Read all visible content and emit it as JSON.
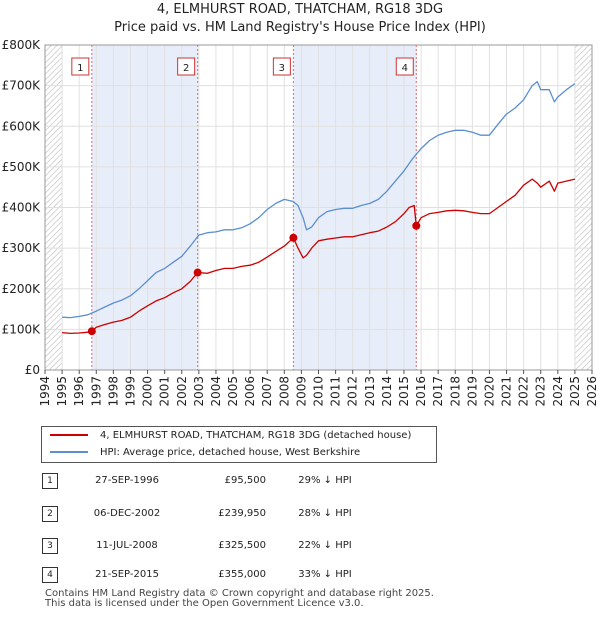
{
  "chart_data": {
    "type": "line",
    "title": "4, ELMHURST ROAD, THATCHAM, RG18 3DG",
    "subtitle": "Price paid vs. HM Land Registry's House Price Index (HPI)",
    "y_ticks": [
      "£0",
      "£100K",
      "£200K",
      "£300K",
      "£400K",
      "£500K",
      "£600K",
      "£700K",
      "£800K"
    ],
    "x_ticks": [
      "1994",
      "1995",
      "1996",
      "1997",
      "1998",
      "1999",
      "2000",
      "2001",
      "2002",
      "2003",
      "2004",
      "2005",
      "2006",
      "2007",
      "2008",
      "2009",
      "2010",
      "2011",
      "2012",
      "2013",
      "2014",
      "2015",
      "2016",
      "2017",
      "2018",
      "2019",
      "2020",
      "2021",
      "2022",
      "2023",
      "2024",
      "2025",
      "2026"
    ],
    "xlim": [
      1994,
      2026
    ],
    "ylim": [
      0,
      800000
    ],
    "grid": true,
    "series": [
      {
        "name": "4, ELMHURST ROAD, THATCHAM, RG18 3DG (detached house)",
        "color": "#cc0000",
        "x": [
          1995.0,
          1995.5,
          1996.0,
          1996.5,
          1996.74,
          1997.0,
          1997.5,
          1998.0,
          1998.5,
          1999.0,
          1999.5,
          2000.0,
          2000.5,
          2001.0,
          2001.5,
          2002.0,
          2002.5,
          2002.93,
          2003.5,
          2004.0,
          2004.5,
          2005.0,
          2005.5,
          2006.0,
          2006.5,
          2007.0,
          2007.5,
          2008.0,
          2008.53,
          2008.8,
          2009.1,
          2009.3,
          2009.6,
          2010.0,
          2010.5,
          2011.0,
          2011.5,
          2012.0,
          2012.5,
          2013.0,
          2013.5,
          2014.0,
          2014.5,
          2015.0,
          2015.3,
          2015.6,
          2015.72,
          2016.0,
          2016.5,
          2017.0,
          2017.5,
          2018.0,
          2018.5,
          2019.0,
          2019.5,
          2020.0,
          2020.5,
          2021.0,
          2021.5,
          2022.0,
          2022.5,
          2022.8,
          2023.0,
          2023.5,
          2023.8,
          2024.0,
          2024.5,
          2025.0
        ],
        "values": [
          92000,
          90000,
          91000,
          93000,
          95500,
          105000,
          112000,
          118000,
          122000,
          130000,
          145000,
          158000,
          170000,
          178000,
          190000,
          200000,
          218000,
          239950,
          238000,
          245000,
          250000,
          250000,
          255000,
          258000,
          265000,
          278000,
          292000,
          305000,
          325500,
          300000,
          276000,
          282000,
          300000,
          318000,
          322000,
          325000,
          328000,
          328000,
          333000,
          338000,
          342000,
          352000,
          365000,
          385000,
          400000,
          405000,
          355000,
          375000,
          385000,
          388000,
          392000,
          393000,
          392000,
          388000,
          385000,
          385000,
          400000,
          415000,
          430000,
          455000,
          470000,
          460000,
          450000,
          465000,
          440000,
          460000,
          465000,
          470000
        ]
      },
      {
        "name": "HPI: Average price, detached house, West Berkshire",
        "color": "#5b8fd0",
        "x": [
          1995.0,
          1995.5,
          1996.0,
          1996.5,
          1997.0,
          1997.5,
          1998.0,
          1998.5,
          1999.0,
          1999.5,
          2000.0,
          2000.5,
          2001.0,
          2001.5,
          2002.0,
          2002.5,
          2003.0,
          2003.5,
          2004.0,
          2004.5,
          2005.0,
          2005.5,
          2006.0,
          2006.5,
          2007.0,
          2007.5,
          2008.0,
          2008.5,
          2008.8,
          2009.1,
          2009.3,
          2009.6,
          2010.0,
          2010.5,
          2011.0,
          2011.5,
          2012.0,
          2012.5,
          2013.0,
          2013.5,
          2014.0,
          2014.5,
          2015.0,
          2015.5,
          2016.0,
          2016.5,
          2017.0,
          2017.5,
          2018.0,
          2018.5,
          2019.0,
          2019.5,
          2020.0,
          2020.5,
          2021.0,
          2021.5,
          2022.0,
          2022.5,
          2022.8,
          2023.0,
          2023.5,
          2023.8,
          2024.0,
          2024.5,
          2025.0
        ],
        "values": [
          130000,
          129000,
          132000,
          136000,
          145000,
          155000,
          165000,
          172000,
          183000,
          200000,
          220000,
          240000,
          250000,
          265000,
          280000,
          305000,
          332000,
          338000,
          340000,
          345000,
          345000,
          350000,
          360000,
          375000,
          395000,
          410000,
          420000,
          415000,
          405000,
          375000,
          345000,
          352000,
          375000,
          390000,
          395000,
          398000,
          398000,
          405000,
          410000,
          420000,
          440000,
          465000,
          490000,
          520000,
          545000,
          565000,
          578000,
          585000,
          590000,
          590000,
          585000,
          578000,
          578000,
          605000,
          630000,
          645000,
          665000,
          700000,
          710000,
          690000,
          690000,
          660000,
          672000,
          690000,
          705000
        ]
      }
    ],
    "sales": [
      {
        "label": "1",
        "date": "27-SEP-1996",
        "year": 1996.74,
        "price": 95500
      },
      {
        "label": "2",
        "date": "06-DEC-2002",
        "year": 2002.93,
        "price": 239950
      },
      {
        "label": "3",
        "date": "11-JUL-2008",
        "year": 2008.53,
        "price": 325500
      },
      {
        "label": "4",
        "date": "21-SEP-2015",
        "year": 2015.72,
        "price": 355000
      }
    ],
    "shaded_ranges": [
      [
        1996.74,
        2002.93
      ],
      [
        2008.53,
        2015.72
      ]
    ],
    "hatched_ranges": [
      [
        1994,
        1995
      ],
      [
        2025,
        2026
      ]
    ]
  },
  "legend": {
    "property_label": "4, ELMHURST ROAD, THATCHAM, RG18 3DG (detached house)",
    "hpi_label": "HPI: Average price, detached house, West Berkshire",
    "property_color": "#cc0000",
    "hpi_color": "#5b8fd0"
  },
  "table": [
    {
      "num": "1",
      "date": "27-SEP-1996",
      "price": "£95,500",
      "hpi": "29% ↓ HPI"
    },
    {
      "num": "2",
      "date": "06-DEC-2002",
      "price": "£239,950",
      "hpi": "28% ↓ HPI"
    },
    {
      "num": "3",
      "date": "11-JUL-2008",
      "price": "£325,500",
      "hpi": "22% ↓ HPI"
    },
    {
      "num": "4",
      "date": "21-SEP-2015",
      "price": "£355,000",
      "hpi": "33% ↓ HPI"
    }
  ],
  "footer": {
    "line1": "Contains HM Land Registry data © Crown copyright and database right 2025.",
    "line2": "This data is licensed under the Open Government Licence v3.0."
  }
}
